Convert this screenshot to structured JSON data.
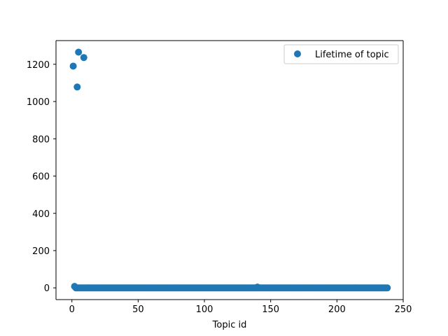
{
  "chart_data": {
    "type": "scatter",
    "title": "",
    "xlabel": "Topic id",
    "ylabel": "",
    "xlim": [
      -12,
      250
    ],
    "ylim": [
      -63,
      1327
    ],
    "xticks": [
      0,
      50,
      100,
      150,
      200,
      250
    ],
    "yticks": [
      0,
      200,
      400,
      600,
      800,
      1000,
      1200
    ],
    "grid": false,
    "legend_position": "top-right",
    "series": [
      {
        "name": "Lifetime of topic",
        "color": "#1f77b4",
        "marker": "circle",
        "outliers": [
          {
            "x": 1,
            "y": 1190
          },
          {
            "x": 4,
            "y": 1078
          },
          {
            "x": 5,
            "y": 1265
          },
          {
            "x": 9,
            "y": 1236
          },
          {
            "x": 2,
            "y": 8
          },
          {
            "x": 140,
            "y": 4
          }
        ],
        "baseline": {
          "x_start": 3,
          "x_end": 238,
          "y": 0
        }
      }
    ]
  }
}
